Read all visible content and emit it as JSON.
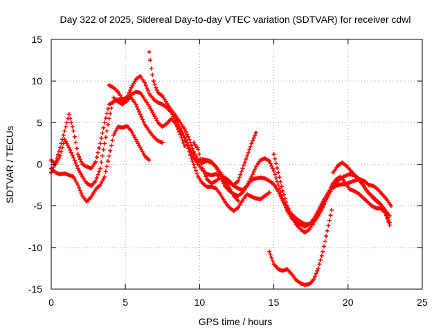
{
  "chart_data": {
    "type": "scatter",
    "title": "Day 322 of 2025, Sidereal Day-to-day VTEC variation (SDTVAR) for receiver cdwl",
    "xlabel": "GPS time / hours",
    "ylabel": "SDTVAR / TECUs",
    "xlim": [
      0,
      25
    ],
    "ylim": [
      -15,
      15
    ],
    "xticks": [
      0,
      5,
      10,
      15,
      20,
      25
    ],
    "yticks": [
      -15,
      -10,
      -5,
      0,
      5,
      10,
      15
    ],
    "grid": true,
    "marker": "plus",
    "color": "#ff0000",
    "series": [
      {
        "name": "track-a",
        "x": [
          0.0,
          0.3,
          0.6,
          0.9,
          1.2,
          1.5,
          1.8,
          2.1,
          2.4,
          2.7,
          3.0,
          3.3,
          3.6,
          3.9,
          4.2,
          4.5,
          4.8,
          5.1,
          5.4,
          5.7,
          6.0,
          6.3,
          6.6,
          6.9,
          7.2,
          7.5
        ],
        "y": [
          -1.0,
          0.3,
          2.0,
          4.0,
          6.0,
          4.0,
          1.2,
          0.0,
          -0.3,
          -0.5,
          0.3,
          2.5,
          5.0,
          7.2,
          7.5,
          7.8,
          7.6,
          7.9,
          8.0,
          7.2,
          6.0,
          4.8,
          4.0,
          3.3,
          2.8,
          2.6
        ]
      },
      {
        "name": "track-b",
        "x": [
          0.0,
          0.3,
          0.6,
          0.9,
          1.2,
          1.5,
          1.8,
          2.1,
          2.4,
          2.7,
          3.0,
          3.3,
          3.6,
          3.9,
          4.2,
          4.5,
          4.8,
          5.1,
          5.4,
          5.7,
          6.0,
          6.3,
          6.6,
          6.9,
          7.2,
          7.5,
          7.8,
          8.1,
          8.4,
          8.7,
          9.0
        ],
        "y": [
          0.5,
          0.0,
          1.0,
          3.0,
          2.0,
          0.8,
          -0.5,
          -1.5,
          -2.3,
          -2.6,
          -2.0,
          -0.5,
          2.5,
          5.5,
          8.0,
          7.5,
          7.2,
          7.6,
          8.4,
          8.7,
          8.6,
          7.8,
          7.0,
          6.0,
          5.0,
          4.5,
          4.9,
          5.5,
          4.8,
          3.6,
          2.2
        ]
      },
      {
        "name": "track-c",
        "x": [
          0.0,
          0.3,
          0.6,
          0.9,
          1.2,
          1.5,
          1.8,
          2.1,
          2.4,
          2.7,
          3.0,
          3.3,
          3.6,
          3.9,
          4.2,
          4.5,
          4.8,
          5.1,
          5.4,
          5.7,
          6.0,
          6.3,
          6.6
        ],
        "y": [
          -0.5,
          -1.0,
          -1.2,
          -1.1,
          -1.3,
          -1.5,
          -2.5,
          -3.8,
          -4.5,
          -3.9,
          -3.0,
          -2.5,
          -1.5,
          1.0,
          3.5,
          4.5,
          4.4,
          4.6,
          4.0,
          3.0,
          2.0,
          1.0,
          0.5
        ]
      },
      {
        "name": "track-d",
        "x": [
          3.9,
          4.2,
          4.5,
          4.8,
          5.1,
          5.4,
          5.7,
          6.0,
          6.3,
          6.6,
          6.9,
          7.2,
          7.5,
          7.8,
          8.1,
          8.4,
          8.7,
          9.0,
          9.3,
          9.6,
          9.9,
          10.2,
          10.5,
          10.8,
          11.1,
          11.4,
          11.7,
          12.0,
          12.3,
          12.6
        ],
        "y": [
          9.5,
          9.2,
          8.7,
          7.8,
          8.0,
          9.2,
          10.2,
          10.6,
          9.8,
          8.5,
          7.8,
          7.4,
          7.2,
          6.8,
          6.2,
          5.3,
          4.3,
          3.2,
          2.0,
          0.8,
          0.0,
          -0.7,
          -1.2,
          -1.3,
          -1.2,
          -1.5,
          -2.0,
          -2.8,
          -3.8,
          -4.4
        ]
      },
      {
        "name": "track-e",
        "x": [
          6.6,
          6.75,
          6.9,
          7.05,
          7.2,
          7.5,
          7.8,
          8.1,
          8.4,
          8.7,
          9.0,
          9.3,
          9.6,
          9.9,
          10.2,
          10.5,
          10.8,
          11.1,
          11.4,
          11.7,
          12.0,
          12.3,
          12.6,
          12.9,
          13.2,
          13.5,
          13.8
        ],
        "y": [
          13.5,
          11.5,
          10.0,
          9.2,
          8.6,
          8.2,
          7.3,
          6.5,
          5.8,
          5.0,
          4.2,
          3.0,
          1.5,
          0.5,
          0.2,
          0.4,
          0.2,
          -0.3,
          -1.0,
          -1.8,
          -2.2,
          -2.5,
          -2.0,
          -0.5,
          1.0,
          2.5,
          3.8
        ]
      },
      {
        "name": "track-f",
        "x": [
          9.0,
          9.3,
          9.6,
          9.9,
          10.2,
          10.5,
          10.8,
          11.1,
          11.4,
          11.7,
          12.0,
          12.3,
          12.6,
          12.9,
          13.2,
          13.5,
          13.8,
          14.1,
          14.4,
          14.7
        ],
        "y": [
          3.2,
          1.5,
          0.0,
          -1.5,
          -2.3,
          -2.7,
          -2.7,
          -2.9,
          -3.6,
          -4.5,
          -5.2,
          -5.6,
          -5.2,
          -4.3,
          -3.6,
          -3.9,
          -4.1,
          -4.2,
          -3.8,
          -3.4
        ]
      },
      {
        "name": "track-g",
        "x": [
          9.6,
          9.9,
          10.2,
          10.5,
          10.8,
          11.1,
          11.4,
          11.7,
          12.0,
          12.3,
          12.6,
          12.9,
          13.2,
          13.5,
          13.8,
          14.1,
          14.4,
          14.7,
          15.0,
          15.3,
          15.6,
          15.9,
          16.2,
          16.5,
          16.8,
          17.1,
          17.4,
          17.7,
          18.0,
          18.3,
          18.6,
          18.9,
          19.2,
          19.5,
          19.8,
          20.1,
          20.4,
          20.7,
          21.0,
          21.3,
          21.6,
          21.9,
          22.2,
          22.5,
          22.8
        ],
        "y": [
          2.6,
          1.8,
          -0.5,
          -1.8,
          -2.3,
          -2.0,
          -1.6,
          -1.6,
          -2.0,
          -2.6,
          -2.9,
          -3.1,
          -2.6,
          -1.9,
          -1.7,
          -1.6,
          -1.7,
          -2.0,
          -2.4,
          -3.3,
          -4.4,
          -5.4,
          -6.0,
          -6.5,
          -6.9,
          -7.2,
          -7.2,
          -6.8,
          -6.0,
          -5.0,
          -4.0,
          -3.0,
          -2.2,
          -1.7,
          -1.4,
          -1.2,
          -1.3,
          -1.8,
          -2.4,
          -3.2,
          -3.9,
          -4.4,
          -4.8,
          -5.5,
          -6.2
        ]
      },
      {
        "name": "track-h",
        "x": [
          10.2,
          10.5,
          10.8,
          11.1,
          11.4,
          11.7,
          12.0,
          12.3,
          12.6,
          12.9,
          13.2,
          13.5,
          13.8,
          14.1,
          14.4,
          14.7,
          15.0,
          15.3,
          15.6,
          15.9,
          16.2,
          16.5,
          16.8,
          17.1,
          17.4,
          17.7,
          18.0,
          18.3,
          18.6,
          18.9,
          19.2,
          19.5,
          19.8,
          20.1,
          20.4,
          20.7,
          21.0,
          21.3,
          21.6,
          21.9,
          22.2,
          22.5,
          22.8
        ],
        "y": [
          0.6,
          0.5,
          0.3,
          -0.3,
          -1.5,
          -2.6,
          -3.2,
          -3.6,
          -3.8,
          -3.4,
          -2.6,
          -1.5,
          -0.3,
          0.5,
          0.7,
          0.4,
          -0.8,
          -2.5,
          -4.2,
          -5.6,
          -6.5,
          -7.0,
          -7.2,
          -7.5,
          -7.2,
          -6.5,
          -5.5,
          -4.5,
          -3.6,
          -2.9,
          -2.6,
          -2.4,
          -2.4,
          -2.2,
          -2.0,
          -1.8,
          -2.5,
          -3.3,
          -3.8,
          -4.3,
          -4.8,
          -5.8,
          -7.0
        ]
      },
      {
        "name": "track-i",
        "x": [
          15.0,
          15.3,
          15.6,
          15.9,
          16.2,
          16.5,
          16.8,
          17.1,
          17.4,
          17.7,
          18.0,
          18.3,
          18.6,
          18.9,
          19.2,
          19.5,
          19.8,
          20.1,
          20.4,
          20.7,
          21.0,
          21.3,
          21.6,
          21.9,
          22.2,
          22.5,
          22.8
        ],
        "y": [
          1.2,
          -1.0,
          -3.2,
          -5.0,
          -6.2,
          -7.2,
          -7.8,
          -8.2,
          -7.8,
          -7.0,
          -6.2,
          -5.2,
          -3.8,
          -2.5,
          -1.8,
          -1.5,
          -2.2,
          -3.0,
          -3.2,
          -3.5,
          -4.0,
          -4.5,
          -5.0,
          -5.3,
          -5.3,
          -5.8,
          -7.3
        ]
      },
      {
        "name": "track-j",
        "x": [
          19.0,
          19.3,
          19.6,
          19.9,
          20.2,
          20.5,
          20.8,
          21.1,
          21.4,
          21.7,
          22.0,
          22.3,
          22.6,
          22.9
        ],
        "y": [
          -1.0,
          -0.2,
          0.2,
          -0.2,
          -0.8,
          -1.4,
          -1.8,
          -2.0,
          -2.5,
          -2.6,
          -3.0,
          -3.6,
          -4.2,
          -5.0
        ]
      },
      {
        "name": "track-k",
        "x": [
          14.7,
          15.0,
          15.3,
          15.6,
          15.9,
          16.2,
          16.5,
          16.8,
          17.1,
          17.4,
          17.7,
          18.0,
          18.3,
          18.6,
          18.9
        ],
        "y": [
          -10.5,
          -12.0,
          -12.6,
          -12.8,
          -12.6,
          -13.2,
          -13.9,
          -14.3,
          -14.5,
          -14.4,
          -13.8,
          -12.5,
          -10.5,
          -8.0,
          -5.5
        ]
      }
    ]
  }
}
